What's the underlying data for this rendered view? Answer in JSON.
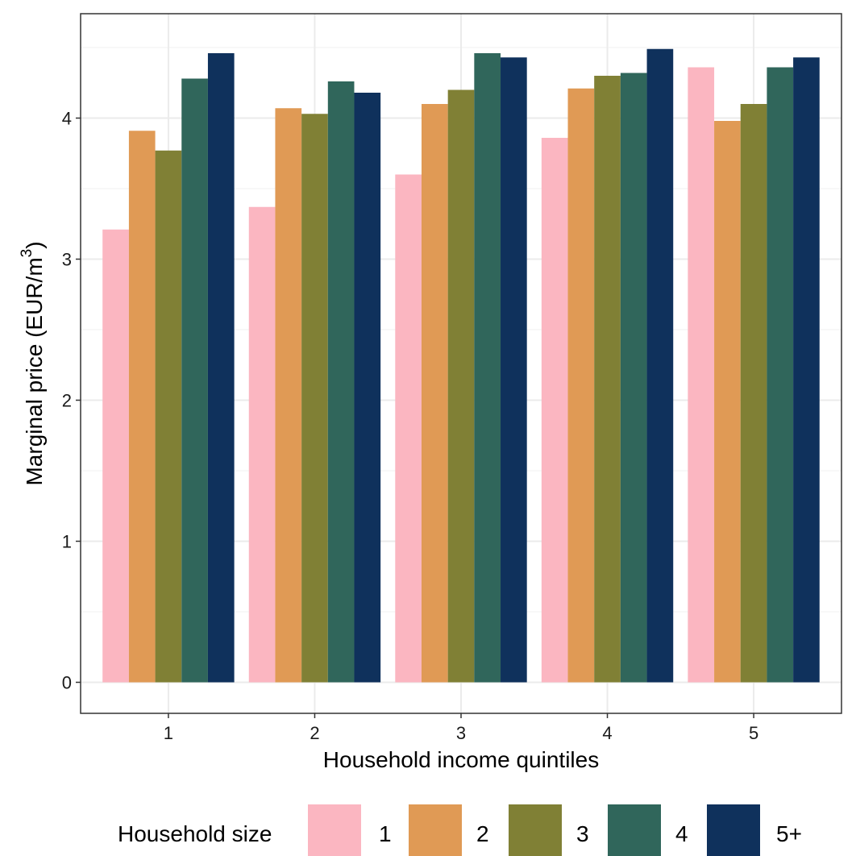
{
  "chart_data": {
    "type": "bar",
    "categories": [
      "1",
      "2",
      "3",
      "4",
      "5"
    ],
    "series": [
      {
        "name": "1",
        "color": "#FBB6C1",
        "values": [
          3.21,
          3.37,
          3.6,
          3.86,
          4.36
        ]
      },
      {
        "name": "2",
        "color": "#E09A55",
        "values": [
          3.91,
          4.07,
          4.1,
          4.21,
          3.98
        ]
      },
      {
        "name": "3",
        "color": "#808035",
        "values": [
          3.77,
          4.03,
          4.2,
          4.3,
          4.1
        ]
      },
      {
        "name": "4",
        "color": "#30665B",
        "values": [
          4.28,
          4.26,
          4.46,
          4.32,
          4.36
        ]
      },
      {
        "name": "5+",
        "color": "#0F315C",
        "values": [
          4.46,
          4.18,
          4.43,
          4.49,
          4.43
        ]
      }
    ],
    "xlabel": "Household income quintiles",
    "ylabel_main": "Marginal price (EUR/m",
    "ylabel_sup": "3",
    "ylabel_close": ")",
    "ylim": [
      -0.22,
      4.74
    ],
    "yticks": [
      "0",
      "1",
      "2",
      "3",
      "4"
    ],
    "legend_title": "Household size",
    "legend_position": "bottom",
    "grid": true
  }
}
